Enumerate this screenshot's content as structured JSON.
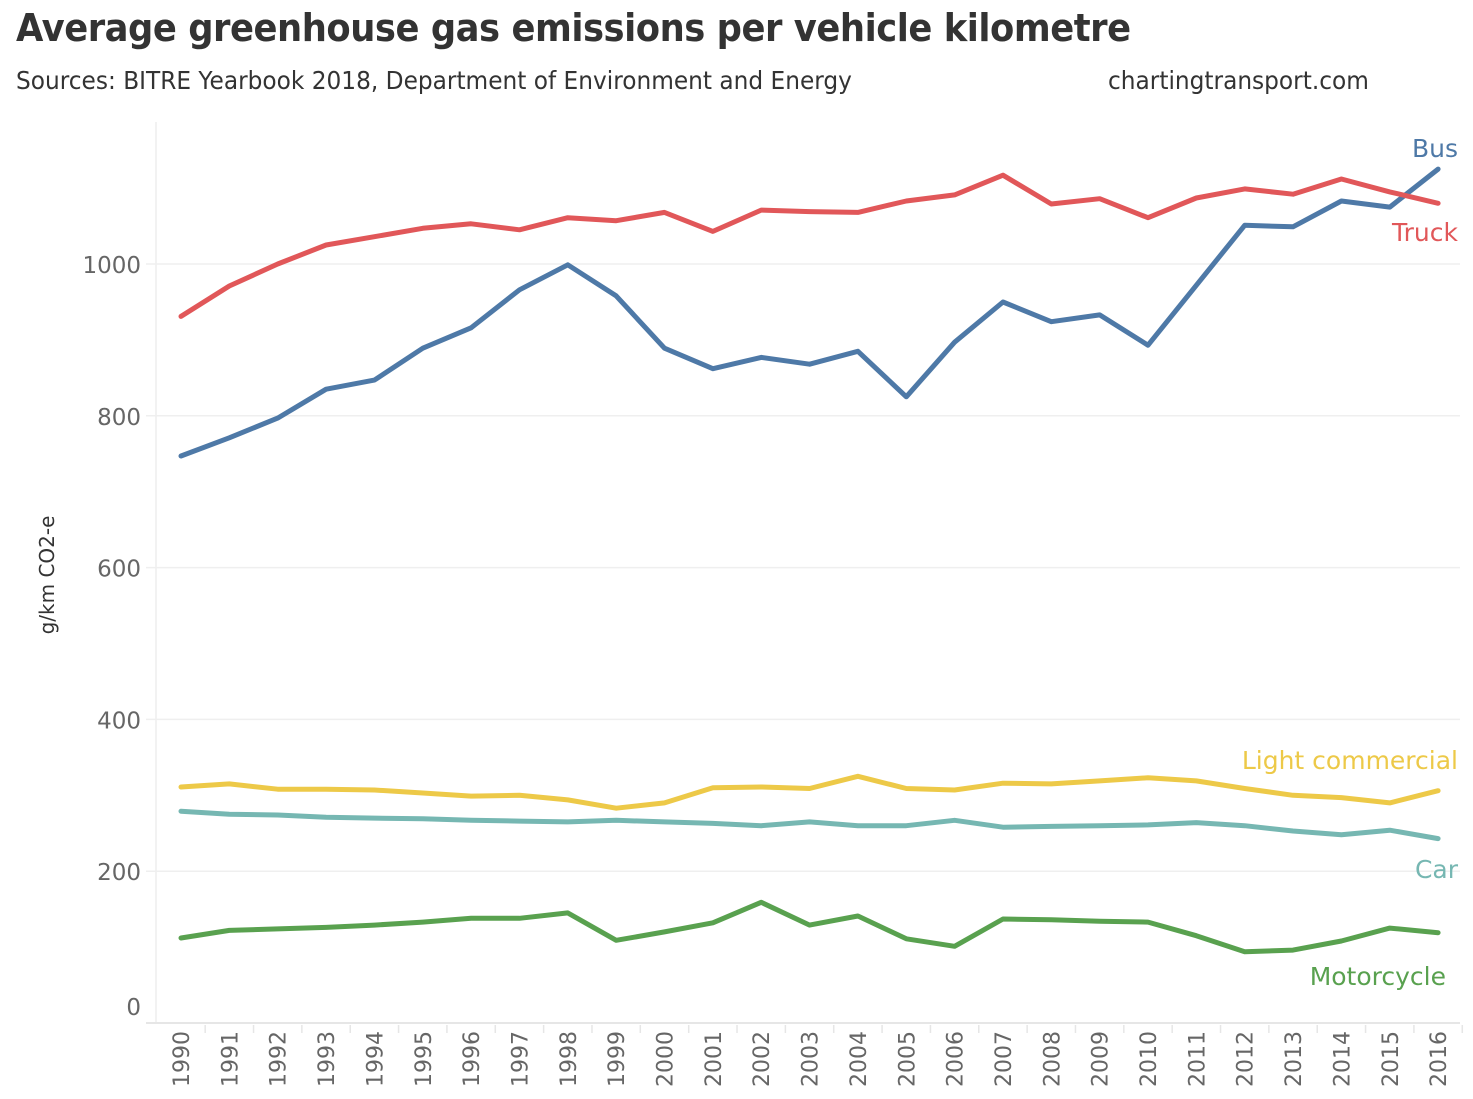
{
  "header": {
    "title": "Average greenhouse gas emissions per vehicle kilometre",
    "subtitle": "Sources: BITRE Yearbook 2018, Department of Environment and Energy",
    "credit": "chartingtransport.com"
  },
  "chart_data": {
    "type": "line",
    "title": "Average greenhouse gas emissions per vehicle kilometre",
    "subtitle": "Sources: BITRE Yearbook 2018, Department of Environment and Energy",
    "xlabel": "",
    "ylabel": "g/km CO2-e",
    "ylim": [
      0,
      1170
    ],
    "yticks": [
      0,
      200,
      400,
      600,
      800,
      1000
    ],
    "grid": true,
    "legend": "direct labels at right end of lines",
    "x": [
      "1990",
      "1991",
      "1992",
      "1993",
      "1994",
      "1995",
      "1996",
      "1997",
      "1998",
      "1999",
      "2000",
      "2001",
      "2002",
      "2003",
      "2004",
      "2005",
      "2006",
      "2007",
      "2008",
      "2009",
      "2010",
      "2011",
      "2012",
      "2013",
      "2014",
      "2015",
      "2016"
    ],
    "series": [
      {
        "name": "Bus",
        "color": "#4e79a7",
        "values": [
          747,
          771,
          797,
          835,
          847,
          889,
          916,
          966,
          999,
          958,
          889,
          862,
          877,
          868,
          885,
          825,
          897,
          950,
          924,
          933,
          893,
          972,
          1051,
          1049,
          1083,
          1075,
          1125
        ]
      },
      {
        "name": "Truck",
        "color": "#e15759",
        "values": [
          931,
          971,
          1000,
          1025,
          1036,
          1047,
          1053,
          1045,
          1061,
          1057,
          1068,
          1043,
          1071,
          1069,
          1068,
          1083,
          1091,
          1117,
          1079,
          1086,
          1061,
          1087,
          1099,
          1092,
          1112,
          1095,
          1080
        ]
      },
      {
        "name": "Light commercial",
        "color": "#edc948",
        "values": [
          311,
          315,
          308,
          308,
          307,
          303,
          299,
          300,
          294,
          283,
          290,
          310,
          311,
          309,
          325,
          309,
          307,
          316,
          315,
          319,
          323,
          319,
          309,
          300,
          297,
          290,
          306
        ]
      },
      {
        "name": "Car",
        "color": "#76b7b2",
        "values": [
          279,
          275,
          274,
          271,
          270,
          269,
          267,
          266,
          265,
          267,
          265,
          263,
          260,
          265,
          260,
          260,
          267,
          258,
          259,
          260,
          261,
          264,
          260,
          253,
          248,
          254,
          243
        ]
      },
      {
        "name": "Motorcycle",
        "color": "#59a14f",
        "values": [
          112,
          122,
          124,
          126,
          129,
          133,
          138,
          138,
          145,
          109,
          120,
          132,
          159,
          129,
          141,
          111,
          101,
          137,
          136,
          134,
          133,
          115,
          94,
          96,
          108,
          125,
          119
        ]
      }
    ]
  }
}
